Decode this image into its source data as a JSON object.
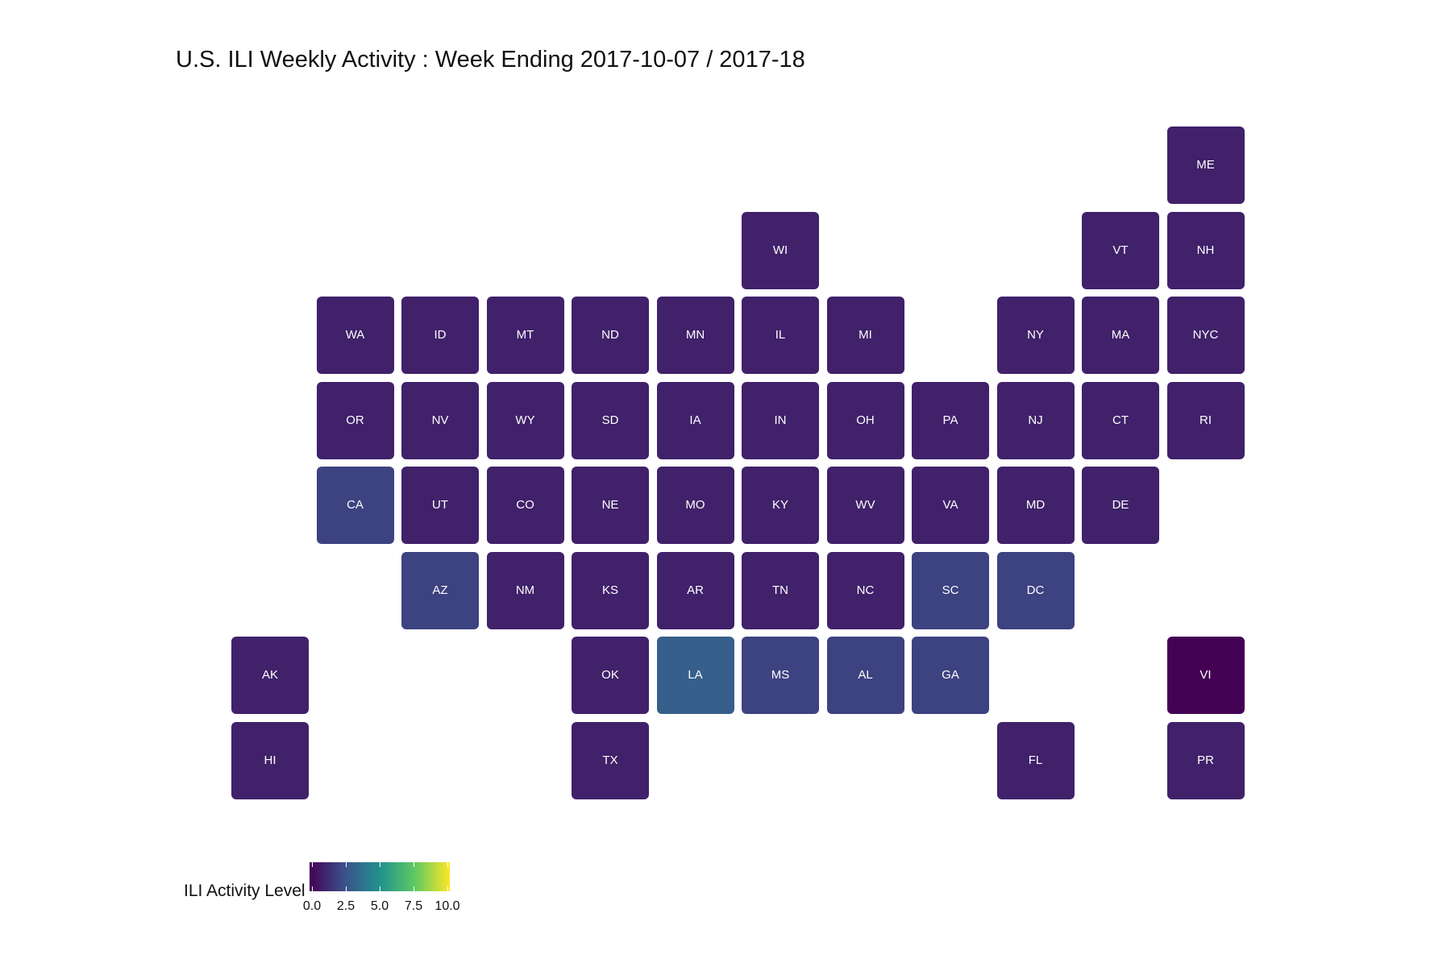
{
  "chart_data": {
    "type": "heatmap",
    "title": "U.S. ILI Weekly Activity : Week Ending 2017-10-07 / 2017-18",
    "legend": {
      "title": "ILI Activity Level",
      "range": [
        0,
        10
      ],
      "ticks": [
        "0.0",
        "2.5",
        "5.0",
        "7.5",
        "10.0"
      ],
      "tick_values": [
        0,
        2.5,
        5,
        7.5,
        10
      ],
      "colors": [
        "#440154",
        "#3b528b",
        "#21918c",
        "#5ec962",
        "#fde725"
      ],
      "placement": "bottom-left"
    },
    "tiles": [
      {
        "state": "ME",
        "col": 11,
        "row": 0,
        "level": 1
      },
      {
        "state": "WI",
        "col": 6,
        "row": 1,
        "level": 1
      },
      {
        "state": "VT",
        "col": 10,
        "row": 1,
        "level": 1
      },
      {
        "state": "NH",
        "col": 11,
        "row": 1,
        "level": 1
      },
      {
        "state": "WA",
        "col": 1,
        "row": 2,
        "level": 1
      },
      {
        "state": "ID",
        "col": 2,
        "row": 2,
        "level": 1
      },
      {
        "state": "MT",
        "col": 3,
        "row": 2,
        "level": 1
      },
      {
        "state": "ND",
        "col": 4,
        "row": 2,
        "level": 1
      },
      {
        "state": "MN",
        "col": 5,
        "row": 2,
        "level": 1
      },
      {
        "state": "IL",
        "col": 6,
        "row": 2,
        "level": 1
      },
      {
        "state": "MI",
        "col": 7,
        "row": 2,
        "level": 1
      },
      {
        "state": "NY",
        "col": 9,
        "row": 2,
        "level": 1
      },
      {
        "state": "MA",
        "col": 10,
        "row": 2,
        "level": 1
      },
      {
        "state": "NYC",
        "col": 11,
        "row": 2,
        "level": 1
      },
      {
        "state": "OR",
        "col": 1,
        "row": 3,
        "level": 1
      },
      {
        "state": "NV",
        "col": 2,
        "row": 3,
        "level": 1
      },
      {
        "state": "WY",
        "col": 3,
        "row": 3,
        "level": 1
      },
      {
        "state": "SD",
        "col": 4,
        "row": 3,
        "level": 1
      },
      {
        "state": "IA",
        "col": 5,
        "row": 3,
        "level": 1
      },
      {
        "state": "IN",
        "col": 6,
        "row": 3,
        "level": 1
      },
      {
        "state": "OH",
        "col": 7,
        "row": 3,
        "level": 1
      },
      {
        "state": "PA",
        "col": 8,
        "row": 3,
        "level": 1
      },
      {
        "state": "NJ",
        "col": 9,
        "row": 3,
        "level": 1
      },
      {
        "state": "CT",
        "col": 10,
        "row": 3,
        "level": 1
      },
      {
        "state": "RI",
        "col": 11,
        "row": 3,
        "level": 1
      },
      {
        "state": "CA",
        "col": 1,
        "row": 4,
        "level": 2
      },
      {
        "state": "UT",
        "col": 2,
        "row": 4,
        "level": 1
      },
      {
        "state": "CO",
        "col": 3,
        "row": 4,
        "level": 1
      },
      {
        "state": "NE",
        "col": 4,
        "row": 4,
        "level": 1
      },
      {
        "state": "MO",
        "col": 5,
        "row": 4,
        "level": 1
      },
      {
        "state": "KY",
        "col": 6,
        "row": 4,
        "level": 1
      },
      {
        "state": "WV",
        "col": 7,
        "row": 4,
        "level": 1
      },
      {
        "state": "VA",
        "col": 8,
        "row": 4,
        "level": 1
      },
      {
        "state": "MD",
        "col": 9,
        "row": 4,
        "level": 1
      },
      {
        "state": "DE",
        "col": 10,
        "row": 4,
        "level": 1
      },
      {
        "state": "AZ",
        "col": 2,
        "row": 5,
        "level": 2
      },
      {
        "state": "NM",
        "col": 3,
        "row": 5,
        "level": 1
      },
      {
        "state": "KS",
        "col": 4,
        "row": 5,
        "level": 1
      },
      {
        "state": "AR",
        "col": 5,
        "row": 5,
        "level": 1
      },
      {
        "state": "TN",
        "col": 6,
        "row": 5,
        "level": 1
      },
      {
        "state": "NC",
        "col": 7,
        "row": 5,
        "level": 1
      },
      {
        "state": "SC",
        "col": 8,
        "row": 5,
        "level": 2
      },
      {
        "state": "DC",
        "col": 9,
        "row": 5,
        "level": 2
      },
      {
        "state": "AK",
        "col": 0,
        "row": 6,
        "level": 1
      },
      {
        "state": "OK",
        "col": 4,
        "row": 6,
        "level": 1
      },
      {
        "state": "LA",
        "col": 5,
        "row": 6,
        "level": 3
      },
      {
        "state": "MS",
        "col": 6,
        "row": 6,
        "level": 2
      },
      {
        "state": "AL",
        "col": 7,
        "row": 6,
        "level": 2
      },
      {
        "state": "GA",
        "col": 8,
        "row": 6,
        "level": 2
      },
      {
        "state": "VI",
        "col": 11,
        "row": 6,
        "level": 0
      },
      {
        "state": "HI",
        "col": 0,
        "row": 7,
        "level": 1
      },
      {
        "state": "TX",
        "col": 4,
        "row": 7,
        "level": 1
      },
      {
        "state": "FL",
        "col": 9,
        "row": 7,
        "level": 1
      },
      {
        "state": "PR",
        "col": 11,
        "row": 7,
        "level": 1
      }
    ]
  }
}
